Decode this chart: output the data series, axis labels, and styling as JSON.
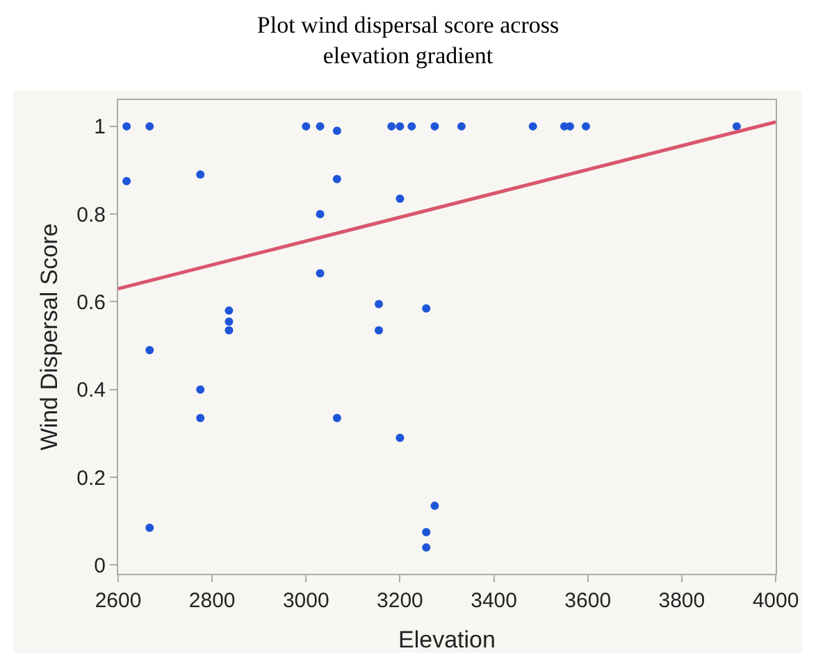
{
  "chart_data": {
    "type": "scatter",
    "title": "Plot wind dispersal score across elevation gradient",
    "xlabel": "Elevation",
    "ylabel": "Wind Dispersal Score",
    "xlim": [
      2600,
      4000
    ],
    "xticks": [
      2600,
      2800,
      3000,
      3200,
      3400,
      3600,
      3800,
      4000
    ],
    "ylim": [
      -0.02,
      1.06
    ],
    "yticks": [
      0,
      0.2,
      0.4,
      0.6,
      0.8,
      1
    ],
    "grid": false,
    "legend": false,
    "marker": "circle",
    "series": [
      {
        "color": "#1f56d8",
        "x": [
          2618,
          2618,
          2667,
          2667,
          2667,
          2775,
          2775,
          2775,
          2836,
          2836,
          2836,
          3000,
          3030,
          3030,
          3030,
          3066,
          3066,
          3066,
          3155,
          3155,
          3182,
          3200,
          3200,
          3200,
          3225,
          3256,
          3256,
          3256,
          3274,
          3274,
          3331,
          3483,
          3550,
          3562,
          3596,
          3917
        ],
        "values": [
          1,
          0.875,
          1,
          0.49,
          0.085,
          0.89,
          0.4,
          0.335,
          0.58,
          0.555,
          0.535,
          1,
          1,
          0.8,
          0.665,
          0.99,
          0.88,
          0.335,
          0.595,
          0.535,
          1,
          1,
          0.835,
          0.29,
          1,
          0.585,
          0.075,
          0.04,
          0.135,
          1,
          1,
          1,
          1,
          1,
          1,
          1
        ]
      },
      {
        "type": "line",
        "color": "#d9576b",
        "line_style": "solid",
        "marker": "none",
        "x": [
          2600,
          4000
        ],
        "values": [
          0.63,
          1.01
        ]
      }
    ]
  }
}
